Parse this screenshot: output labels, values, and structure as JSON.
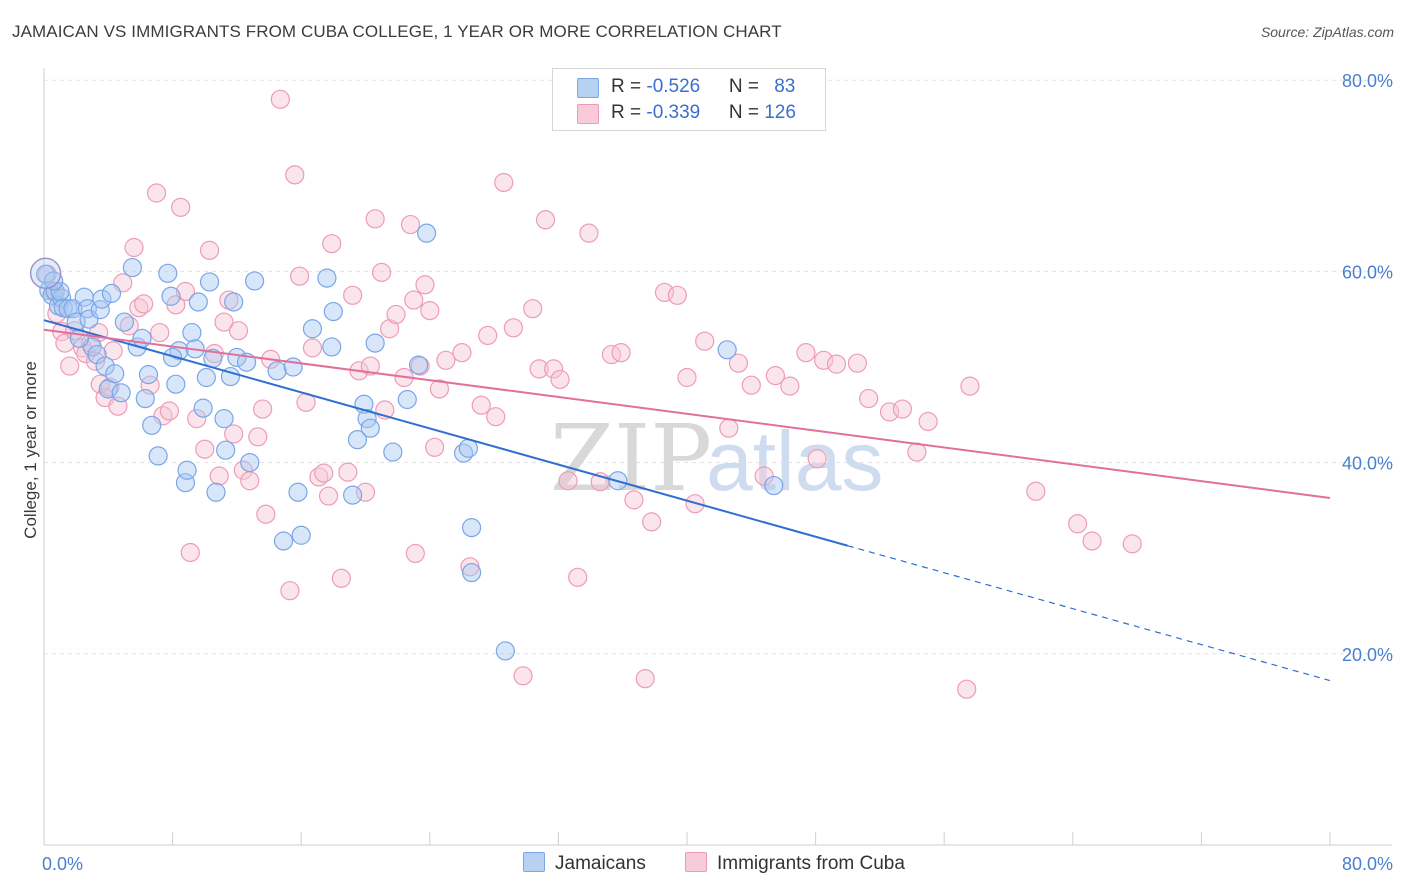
{
  "header": {
    "title": "JAMAICAN VS IMMIGRANTS FROM CUBA COLLEGE, 1 YEAR OR MORE CORRELATION CHART",
    "source": "Source: ZipAtlas.com"
  },
  "legend": {
    "rows": [
      {
        "r_label": "R = ",
        "r_value": "-0.526",
        "n_label": "N = ",
        "n_value": "83"
      },
      {
        "r_label": "R = ",
        "r_value": "-0.339",
        "n_label": "N = ",
        "n_value": "126"
      }
    ]
  },
  "bottom_legend": {
    "jamaicans": "Jamaicans",
    "cuba": "Immigrants from Cuba"
  },
  "watermark": {
    "zip": "ZIP",
    "atlas": "atlas"
  },
  "colors": {
    "blue_stroke": "#7aa6e6",
    "blue_fill": "#a9c8f2",
    "blue_line": "#2f6fd0",
    "pink_stroke": "#ee9bb7",
    "pink_fill": "#f6c5d5",
    "pink_line": "#e2709a",
    "grid": "#e2e2e2",
    "tick_text": "#4a7fd0"
  },
  "chart_data": {
    "type": "scatter",
    "title": "JAMAICAN VS IMMIGRANTS FROM CUBA COLLEGE, 1 YEAR OR MORE CORRELATION CHART",
    "xlabel": "",
    "ylabel": "College, 1 year or more",
    "xlim": [
      0,
      80
    ],
    "ylim": [
      0,
      82
    ],
    "x_tick_labels": [
      "0.0%",
      "80.0%"
    ],
    "y_ticks": [
      20,
      40,
      60,
      80
    ],
    "y_tick_labels": [
      "20.0%",
      "40.0%",
      "60.0%",
      "80.0%"
    ],
    "series": [
      {
        "name": "Jamaicans",
        "trend": {
          "x0": 0,
          "y0": 54.9,
          "x1": 50,
          "y1": 31.3,
          "dash_to_x": 80,
          "dash_to_y": 17.2
        },
        "points": [
          [
            0.1,
            59.7
          ],
          [
            0.3,
            58.0
          ],
          [
            0.5,
            57.5
          ],
          [
            0.7,
            57.9
          ],
          [
            0.9,
            56.4
          ],
          [
            1.1,
            57.2
          ],
          [
            1.2,
            56.2
          ],
          [
            1.5,
            56.1
          ],
          [
            1.8,
            56.1
          ],
          [
            2.0,
            54.7
          ],
          [
            2.5,
            57.3
          ],
          [
            2.7,
            56.1
          ],
          [
            2.8,
            55.0
          ],
          [
            3.0,
            52.1
          ],
          [
            3.3,
            51.3
          ],
          [
            3.5,
            56.0
          ],
          [
            3.6,
            57.1
          ],
          [
            3.8,
            50.1
          ],
          [
            4.0,
            47.7
          ],
          [
            4.2,
            57.7
          ],
          [
            4.4,
            49.3
          ],
          [
            4.8,
            47.3
          ],
          [
            5.0,
            54.7
          ],
          [
            5.5,
            60.4
          ],
          [
            5.8,
            52.1
          ],
          [
            6.1,
            53.0
          ],
          [
            6.3,
            46.7
          ],
          [
            6.5,
            49.2
          ],
          [
            6.7,
            43.9
          ],
          [
            7.1,
            40.7
          ],
          [
            7.7,
            59.8
          ],
          [
            7.9,
            57.4
          ],
          [
            8.2,
            48.2
          ],
          [
            8.4,
            51.7
          ],
          [
            8.8,
            37.9
          ],
          [
            8.9,
            39.2
          ],
          [
            9.2,
            53.6
          ],
          [
            9.4,
            51.9
          ],
          [
            9.6,
            56.8
          ],
          [
            9.9,
            45.7
          ],
          [
            10.1,
            48.9
          ],
          [
            10.3,
            58.9
          ],
          [
            10.5,
            50.9
          ],
          [
            10.7,
            36.9
          ],
          [
            11.2,
            44.6
          ],
          [
            11.3,
            41.3
          ],
          [
            11.6,
            49.0
          ],
          [
            11.8,
            56.8
          ],
          [
            12.0,
            51.0
          ],
          [
            12.6,
            50.5
          ],
          [
            12.8,
            40.0
          ],
          [
            13.1,
            59.0
          ],
          [
            14.5,
            49.6
          ],
          [
            14.9,
            31.8
          ],
          [
            15.5,
            50.0
          ],
          [
            15.8,
            36.9
          ],
          [
            16.0,
            32.4
          ],
          [
            16.7,
            54.0
          ],
          [
            17.6,
            59.3
          ],
          [
            17.9,
            52.1
          ],
          [
            18.0,
            55.8
          ],
          [
            19.2,
            36.6
          ],
          [
            19.5,
            42.4
          ],
          [
            19.9,
            46.1
          ],
          [
            20.1,
            44.6
          ],
          [
            20.3,
            43.6
          ],
          [
            20.6,
            52.5
          ],
          [
            21.7,
            41.1
          ],
          [
            22.6,
            46.6
          ],
          [
            23.3,
            50.2
          ],
          [
            23.8,
            64.0
          ],
          [
            26.1,
            41.0
          ],
          [
            26.4,
            41.5
          ],
          [
            26.6,
            33.2
          ],
          [
            26.6,
            28.5
          ],
          [
            28.7,
            20.3
          ],
          [
            35.7,
            38.1
          ],
          [
            42.5,
            51.8
          ],
          [
            45.4,
            37.6
          ],
          [
            1.0,
            57.9
          ],
          [
            0.6,
            59.0
          ],
          [
            2.2,
            53.0
          ],
          [
            8.0,
            51.0
          ]
        ]
      },
      {
        "name": "Immigrants from Cuba",
        "trend": {
          "x0": 0,
          "y0": 53.9,
          "x1": 80,
          "y1": 36.3
        },
        "points": [
          [
            0.2,
            59.7
          ],
          [
            0.6,
            57.9
          ],
          [
            0.8,
            55.6
          ],
          [
            1.1,
            53.7
          ],
          [
            1.3,
            52.5
          ],
          [
            1.6,
            50.1
          ],
          [
            1.9,
            53.8
          ],
          [
            2.4,
            52.0
          ],
          [
            2.6,
            51.4
          ],
          [
            2.9,
            52.5
          ],
          [
            3.2,
            50.6
          ],
          [
            3.4,
            53.6
          ],
          [
            3.5,
            48.2
          ],
          [
            3.8,
            46.8
          ],
          [
            4.1,
            47.9
          ],
          [
            4.3,
            51.7
          ],
          [
            4.6,
            45.9
          ],
          [
            4.9,
            58.8
          ],
          [
            5.3,
            54.3
          ],
          [
            5.6,
            62.5
          ],
          [
            5.9,
            56.2
          ],
          [
            6.2,
            56.6
          ],
          [
            6.6,
            48.1
          ],
          [
            7.0,
            68.2
          ],
          [
            7.4,
            44.9
          ],
          [
            7.8,
            45.4
          ],
          [
            8.2,
            56.5
          ],
          [
            8.5,
            66.7
          ],
          [
            8.8,
            57.9
          ],
          [
            9.1,
            30.6
          ],
          [
            9.5,
            44.6
          ],
          [
            10.0,
            41.4
          ],
          [
            10.3,
            62.2
          ],
          [
            10.6,
            51.4
          ],
          [
            10.9,
            38.6
          ],
          [
            11.2,
            54.7
          ],
          [
            11.5,
            57.0
          ],
          [
            11.8,
            43.0
          ],
          [
            12.1,
            53.8
          ],
          [
            12.4,
            39.2
          ],
          [
            12.8,
            38.1
          ],
          [
            13.3,
            42.7
          ],
          [
            13.6,
            45.6
          ],
          [
            13.8,
            34.6
          ],
          [
            14.1,
            50.8
          ],
          [
            14.7,
            78.0
          ],
          [
            15.3,
            26.6
          ],
          [
            15.6,
            70.1
          ],
          [
            15.9,
            59.5
          ],
          [
            16.3,
            46.3
          ],
          [
            16.7,
            52.0
          ],
          [
            17.1,
            38.5
          ],
          [
            17.4,
            38.9
          ],
          [
            17.7,
            36.5
          ],
          [
            17.9,
            62.9
          ],
          [
            18.5,
            27.9
          ],
          [
            18.9,
            39.0
          ],
          [
            19.2,
            57.5
          ],
          [
            19.6,
            49.6
          ],
          [
            20.0,
            36.9
          ],
          [
            20.3,
            50.1
          ],
          [
            20.6,
            65.5
          ],
          [
            21.0,
            59.9
          ],
          [
            21.2,
            45.5
          ],
          [
            21.5,
            54.0
          ],
          [
            21.9,
            55.5
          ],
          [
            22.4,
            48.9
          ],
          [
            22.8,
            64.9
          ],
          [
            23.1,
            30.5
          ],
          [
            23.4,
            50.1
          ],
          [
            23.7,
            58.6
          ],
          [
            24.0,
            55.9
          ],
          [
            24.3,
            41.6
          ],
          [
            24.6,
            47.7
          ],
          [
            25.0,
            50.7
          ],
          [
            26.0,
            51.5
          ],
          [
            26.5,
            29.1
          ],
          [
            27.2,
            46.0
          ],
          [
            27.6,
            53.3
          ],
          [
            28.1,
            44.8
          ],
          [
            28.6,
            69.3
          ],
          [
            29.2,
            54.1
          ],
          [
            29.8,
            17.7
          ],
          [
            30.4,
            56.1
          ],
          [
            30.8,
            49.8
          ],
          [
            31.2,
            65.4
          ],
          [
            31.7,
            49.8
          ],
          [
            32.1,
            48.7
          ],
          [
            32.6,
            38.1
          ],
          [
            33.2,
            28.0
          ],
          [
            33.9,
            64.0
          ],
          [
            34.6,
            38.0
          ],
          [
            35.3,
            51.3
          ],
          [
            35.9,
            51.5
          ],
          [
            36.7,
            36.1
          ],
          [
            37.4,
            17.4
          ],
          [
            37.8,
            33.8
          ],
          [
            38.6,
            57.8
          ],
          [
            39.4,
            57.5
          ],
          [
            40.0,
            48.9
          ],
          [
            40.5,
            35.7
          ],
          [
            41.1,
            52.7
          ],
          [
            42.6,
            43.6
          ],
          [
            43.2,
            50.4
          ],
          [
            44.0,
            48.1
          ],
          [
            44.8,
            38.6
          ],
          [
            45.5,
            49.1
          ],
          [
            46.4,
            48.0
          ],
          [
            47.4,
            51.5
          ],
          [
            48.1,
            40.4
          ],
          [
            48.5,
            50.7
          ],
          [
            49.3,
            50.3
          ],
          [
            50.6,
            50.4
          ],
          [
            51.3,
            46.7
          ],
          [
            52.6,
            45.3
          ],
          [
            53.4,
            45.6
          ],
          [
            54.3,
            41.1
          ],
          [
            55.0,
            44.3
          ],
          [
            57.4,
            16.3
          ],
          [
            57.6,
            48.0
          ],
          [
            61.7,
            37.0
          ],
          [
            64.3,
            33.6
          ],
          [
            65.2,
            31.8
          ],
          [
            67.7,
            31.5
          ],
          [
            7.2,
            53.6
          ],
          [
            23.0,
            57.0
          ]
        ]
      }
    ]
  }
}
